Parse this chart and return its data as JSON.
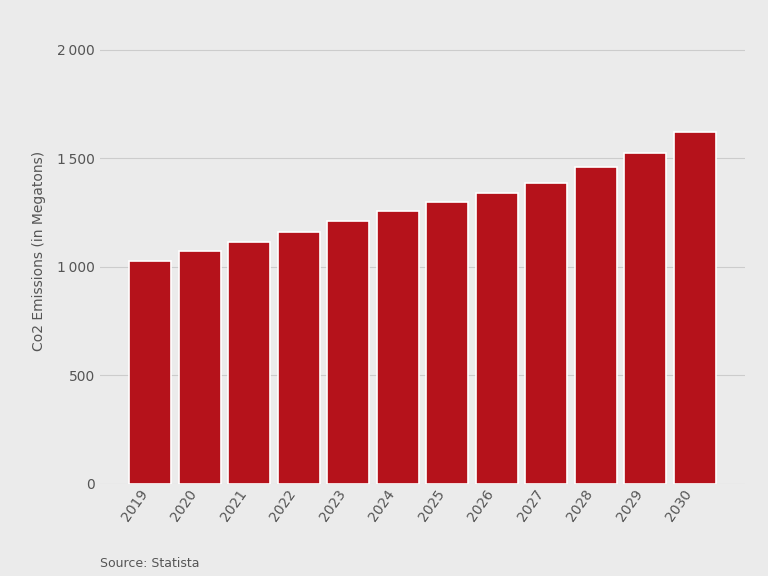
{
  "years": [
    "2019",
    "2020",
    "2021",
    "2022",
    "2023",
    "2024",
    "2025",
    "2026",
    "2027",
    "2028",
    "2029",
    "2030"
  ],
  "values": [
    1025,
    1074,
    1113,
    1162,
    1213,
    1258,
    1300,
    1340,
    1385,
    1460,
    1525,
    1620
  ],
  "bar_color": "#b5121b",
  "background_color": "#ebebeb",
  "ylabel": "Co2 Emissions (in Megatons)",
  "source_text": "Source: Statista",
  "yticks": [
    0,
    500,
    1000,
    1500,
    2000
  ],
  "ylim": [
    0,
    2150
  ],
  "grid_color": "#cccccc",
  "tick_label_color": "#555555",
  "source_fontsize": 9,
  "ylabel_fontsize": 10,
  "tick_fontsize": 10,
  "bar_width": 0.85
}
